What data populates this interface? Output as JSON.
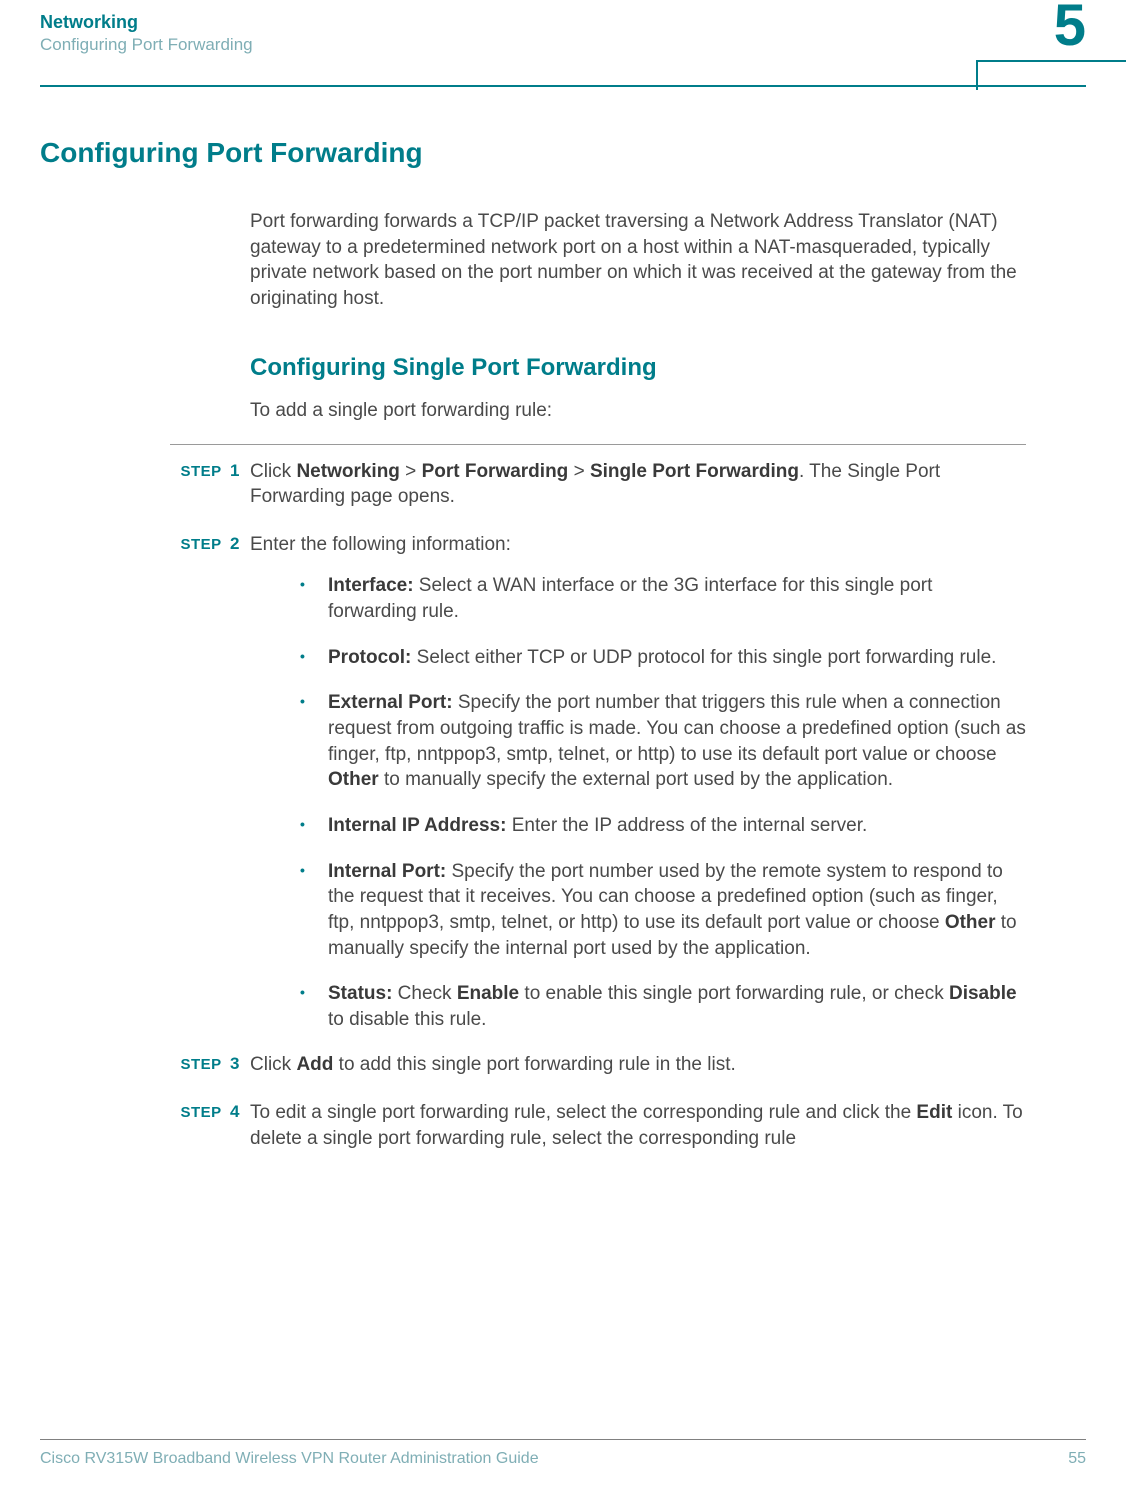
{
  "colors": {
    "accent": "#007d8a",
    "muted": "#7faeb5",
    "text": "#4a4a4a",
    "bold_text": "#3a3a3a",
    "rule": "#9a9a9a",
    "footer_rule": "#808080",
    "background": "#ffffff"
  },
  "typography": {
    "body_fontsize": 19,
    "h1_fontsize": 28,
    "h2_fontsize": 24,
    "step_label_fontsize": 15,
    "header_title_fontsize": 18,
    "chapter_num_fontsize": 58,
    "footer_fontsize": 16,
    "line_height": 1.35
  },
  "header": {
    "title": "Networking",
    "subtitle": "Configuring Port Forwarding",
    "chapter_number": "5"
  },
  "section": {
    "title": "Configuring Port Forwarding",
    "intro": "Port forwarding forwards a TCP/IP packet traversing a Network Address Translator (NAT) gateway to a predetermined network port on a host within a NAT-masqueraded, typically private network based on the port number on which it was received at the gateway from the originating host."
  },
  "subsection": {
    "title": "Configuring Single Port Forwarding",
    "lead": "To add a single port forwarding rule:"
  },
  "step_word": "STEP",
  "steps": [
    {
      "num": "1",
      "parts": [
        {
          "t": "Click "
        },
        {
          "t": "Networking",
          "b": true
        },
        {
          "t": " > "
        },
        {
          "t": "Port Forwarding",
          "b": true
        },
        {
          "t": " > "
        },
        {
          "t": "Single Port Forwarding",
          "b": true
        },
        {
          "t": ". The Single Port Forwarding page opens."
        }
      ]
    },
    {
      "num": "2",
      "parts": [
        {
          "t": "Enter the following information:"
        }
      ]
    },
    {
      "num": "3",
      "parts": [
        {
          "t": "Click "
        },
        {
          "t": "Add",
          "b": true
        },
        {
          "t": " to add this single port forwarding rule in the list."
        }
      ]
    },
    {
      "num": "4",
      "parts": [
        {
          "t": "To edit a single port forwarding rule, select the corresponding rule and click the "
        },
        {
          "t": "Edit",
          "b": true
        },
        {
          "t": " icon. To delete a single port forwarding rule, select the corresponding rule"
        }
      ]
    }
  ],
  "bullets": [
    [
      {
        "t": "Interface:",
        "b": true
      },
      {
        "t": " Select a WAN interface or the 3G interface for this single port forwarding rule."
      }
    ],
    [
      {
        "t": "Protocol:",
        "b": true
      },
      {
        "t": " Select either TCP or UDP protocol for this single port forwarding rule."
      }
    ],
    [
      {
        "t": "External Port:",
        "b": true
      },
      {
        "t": " Specify the port number that triggers this rule when a connection request from outgoing traffic is made. You can choose a predefined option (such as finger, ftp, nntppop3, smtp, telnet, or http) to use its default port value or choose "
      },
      {
        "t": "Other",
        "b": true
      },
      {
        "t": " to manually specify the external port used by the application."
      }
    ],
    [
      {
        "t": "Internal IP Address:",
        "b": true
      },
      {
        "t": " Enter the IP address of the internal server."
      }
    ],
    [
      {
        "t": "Internal Port:",
        "b": true
      },
      {
        "t": " Specify the port number used by the remote system to respond to the request that it receives. You can choose a predefined option (such as finger, ftp, nntppop3, smtp, telnet, or http) to use its default port value or choose "
      },
      {
        "t": "Other",
        "b": true
      },
      {
        "t": " to manually specify the internal port used by the application."
      }
    ],
    [
      {
        "t": "Status:",
        "b": true
      },
      {
        "t": " Check "
      },
      {
        "t": "Enable",
        "b": true
      },
      {
        "t": " to enable this single port forwarding rule, or check "
      },
      {
        "t": "Disable",
        "b": true
      },
      {
        "t": " to disable this rule."
      }
    ]
  ],
  "footer": {
    "guide": "Cisco RV315W Broadband Wireless VPN Router Administration Guide",
    "page": "55"
  }
}
